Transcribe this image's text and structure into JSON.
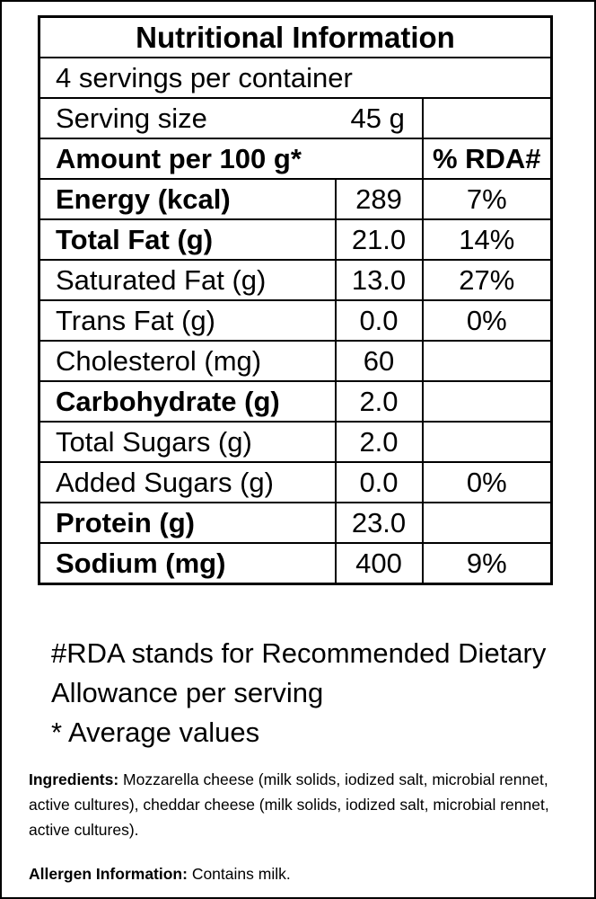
{
  "label": {
    "title": "Nutritional Information",
    "servings_per_container": "4 servings per container",
    "serving_size_label": "Serving size",
    "serving_size_value": "45 g",
    "amount_header": "Amount per 100 g*",
    "rda_header": "% RDA#",
    "rows": [
      {
        "name": "Energy (kcal)",
        "amount": "289",
        "rda": "7%",
        "bold": true
      },
      {
        "name": "Total Fat (g)",
        "amount": "21.0",
        "rda": "14%",
        "bold": true
      },
      {
        "name": "Saturated Fat (g)",
        "amount": "13.0",
        "rda": "27%",
        "bold": false
      },
      {
        "name": "Trans Fat (g)",
        "amount": "0.0",
        "rda": "0%",
        "bold": false
      },
      {
        "name": "Cholesterol (mg)",
        "amount": "60",
        "rda": "",
        "bold": false
      },
      {
        "name": "Carbohydrate (g)",
        "amount": "2.0",
        "rda": "",
        "bold": true
      },
      {
        "name": "Total Sugars (g)",
        "amount": "2.0",
        "rda": "",
        "bold": false
      },
      {
        "name": "Added Sugars (g)",
        "amount": "0.0",
        "rda": "0%",
        "bold": false
      },
      {
        "name": "Protein (g)",
        "amount": "23.0",
        "rda": "",
        "bold": true
      },
      {
        "name": "Sodium (mg)",
        "amount": "400",
        "rda": "9%",
        "bold": true
      }
    ]
  },
  "footnotes": {
    "rda_line1": "#RDA stands for Recommended Dietary",
    "rda_line2": "Allowance per serving",
    "average": "* Average values"
  },
  "ingredients": {
    "heading": "Ingredients:",
    "text": " Mozzarella cheese (milk solids, iodized salt, microbial rennet, active cultures), cheddar cheese (milk solids, iodized salt, microbial rennet, active cultures)."
  },
  "allergen": {
    "heading": "Allergen Information:",
    "text": " Contains milk."
  }
}
